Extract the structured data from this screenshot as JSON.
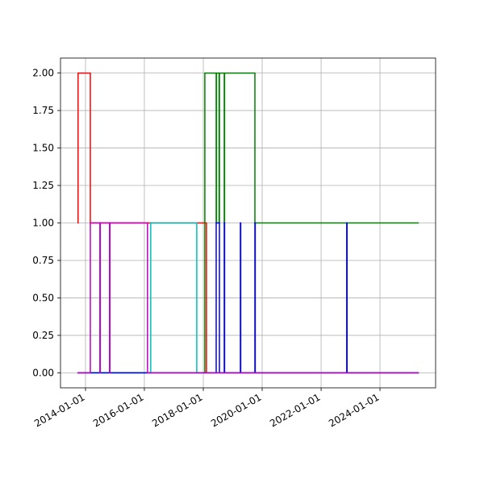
{
  "chart_data": {
    "type": "line",
    "step": "post",
    "grid": true,
    "xlim": [
      "2013-02-25",
      "2025-11-21"
    ],
    "xticks": [
      "2014-01-01",
      "2016-01-01",
      "2018-01-01",
      "2020-01-01",
      "2022-01-01",
      "2024-01-01"
    ],
    "ylim": [
      -0.1,
      2.1
    ],
    "yticks": [
      {
        "value": 0,
        "label": "0.00"
      },
      {
        "value": 0.25,
        "label": "0.25"
      },
      {
        "value": 0.5,
        "label": "0.50"
      },
      {
        "value": 0.75,
        "label": "0.75"
      },
      {
        "value": 1,
        "label": "1.00"
      },
      {
        "value": 1.25,
        "label": "1.25"
      },
      {
        "value": 1.5,
        "label": "1.50"
      },
      {
        "value": 1.75,
        "label": "1.75"
      },
      {
        "value": 2,
        "label": "2.00"
      }
    ],
    "series": [
      {
        "color": "#ff0000",
        "x": [
          "2013-09-23",
          "2013-10-01",
          "2014-03-02",
          "2018-02-09",
          "2025-04-26"
        ],
        "values": [
          1,
          2,
          1,
          0,
          0
        ]
      },
      {
        "color": "#00bfbf",
        "x": [
          "2013-09-23",
          "2016-03-20",
          "2017-10-12",
          "2025-04-26"
        ],
        "values": [
          0,
          1,
          0,
          0
        ]
      },
      {
        "color": "#008000",
        "x": [
          "2013-09-23",
          "2018-01-20",
          "2018-06-10",
          "2018-06-14",
          "2018-07-16",
          "2018-07-20",
          "2018-09-18",
          "2018-09-22",
          "2019-10-03",
          "2025-04-26"
        ],
        "values": [
          0,
          2,
          1,
          2,
          1,
          2,
          1,
          2,
          1,
          1
        ]
      },
      {
        "color": "#0000ff",
        "x": [
          "2013-09-23",
          "2014-06-30",
          "2014-07-03",
          "2014-10-28",
          "2014-10-31",
          "2018-06-10",
          "2018-07-20",
          "2018-09-18",
          "2018-09-22",
          "2019-04-06",
          "2019-04-10",
          "2019-10-03",
          "2019-10-07",
          "2022-11-15",
          "2022-11-19",
          "2025-04-26"
        ],
        "values": [
          0,
          1,
          0,
          1,
          0,
          1,
          0,
          1,
          0,
          1,
          0,
          1,
          0,
          1,
          0,
          0
        ]
      },
      {
        "color": "#bf00bf",
        "x": [
          "2013-09-23",
          "2014-03-02",
          "2014-06-30",
          "2014-07-03",
          "2014-10-28",
          "2014-10-31",
          "2016-02-09",
          "2025-04-26"
        ],
        "values": [
          0,
          1,
          0,
          1,
          0,
          1,
          0,
          0
        ]
      }
    ]
  }
}
